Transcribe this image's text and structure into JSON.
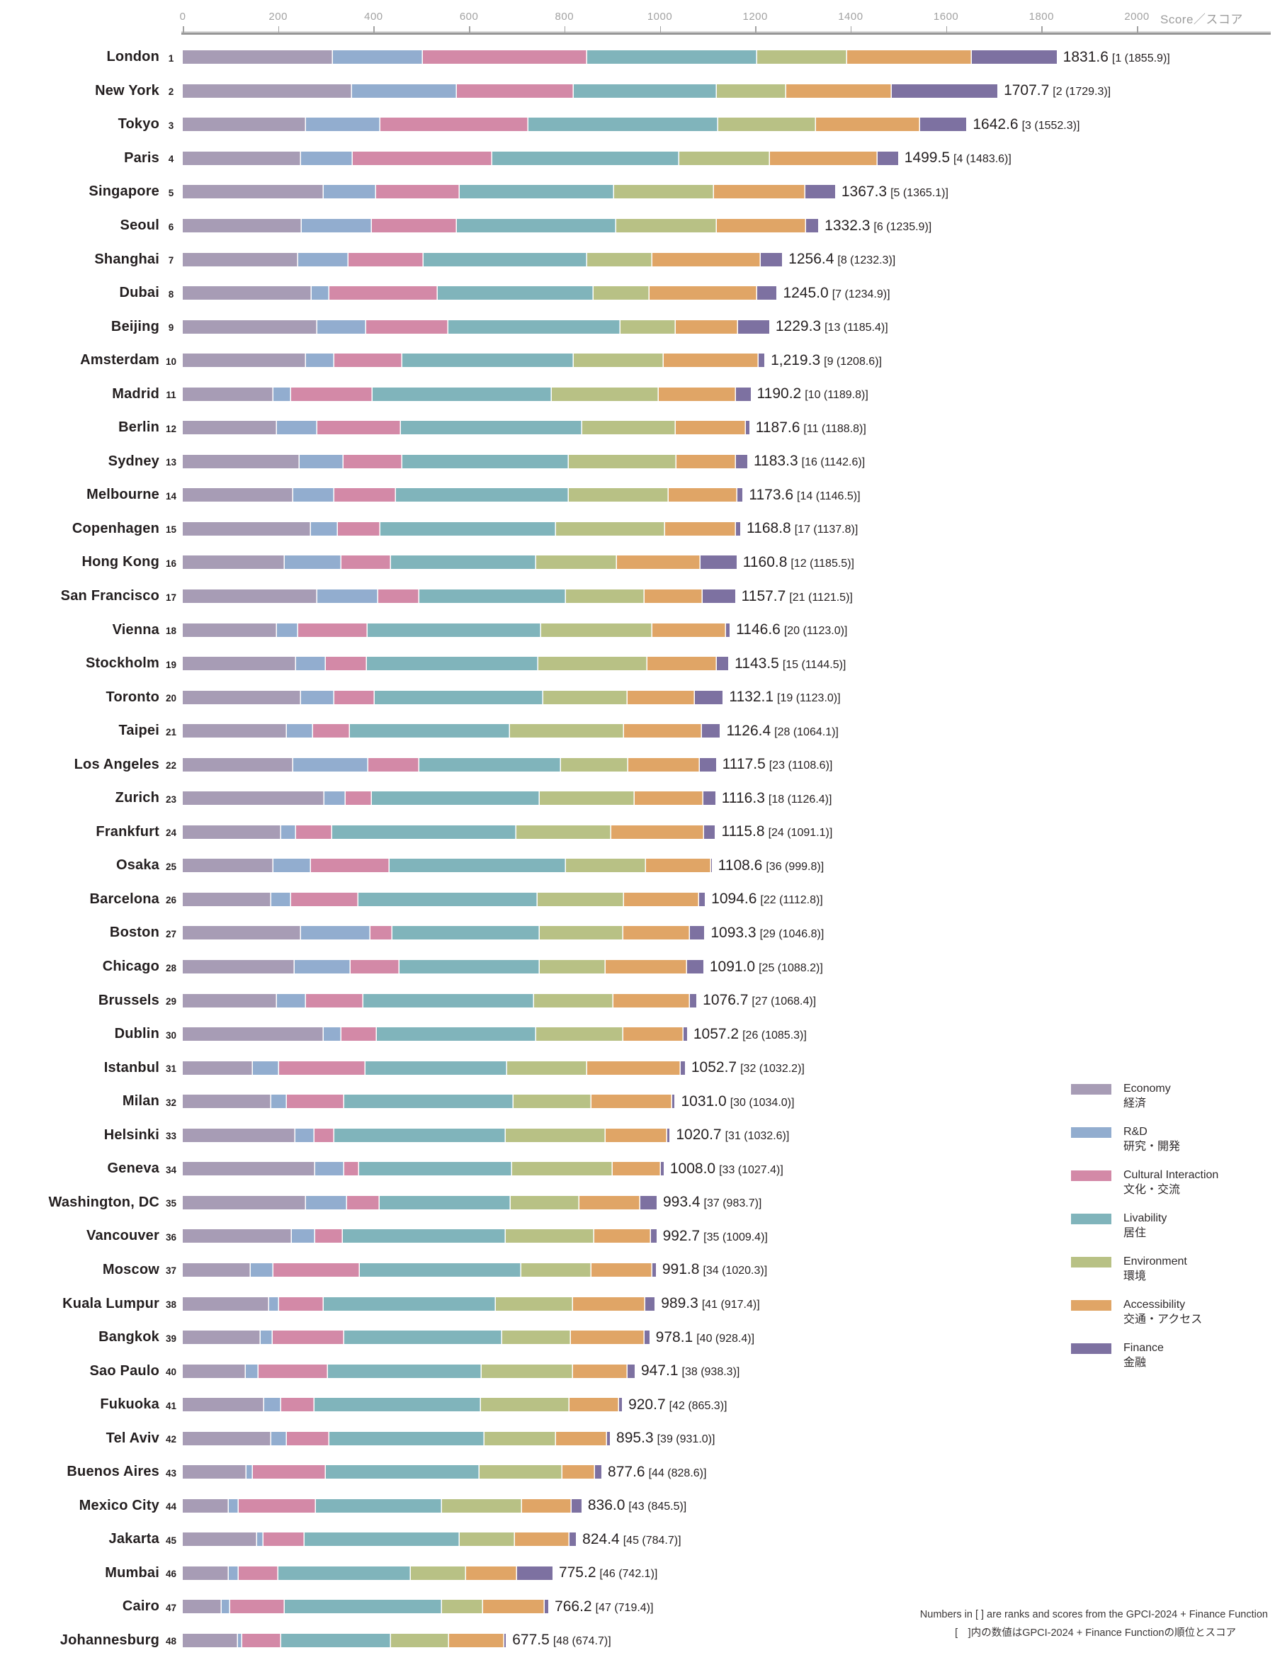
{
  "page": {
    "axis_unit_label": "Score／スコア"
  },
  "footnote": {
    "line1": "Numbers in [ ] are ranks and scores from the GPCI-2024 + Finance Function",
    "line2": "[　]内の数値はGPCI-2024 + Finance Functionの順位とスコア"
  },
  "chart_data": {
    "type": "bar",
    "variant": "horizontal-stacked",
    "title": "",
    "axis": {
      "min": 0,
      "max": 2000,
      "step": 200,
      "label": "Score／スコア",
      "grid": false
    },
    "legend_position": "right-middle",
    "legend": [
      {
        "key": "economy",
        "en": "Economy",
        "ja": "経済",
        "color": "#a79cb5"
      },
      {
        "key": "rd",
        "en": "R&D",
        "ja": "研究・開発",
        "color": "#92adcf"
      },
      {
        "key": "cultural",
        "en": "Cultural Interaction",
        "ja": "文化・交流",
        "color": "#d389a7"
      },
      {
        "key": "livability",
        "en": "Livability",
        "ja": "居住",
        "color": "#80b4bb"
      },
      {
        "key": "environment",
        "en": "Environment",
        "ja": "環境",
        "color": "#b8c185"
      },
      {
        "key": "accessibility",
        "en": "Accessibility",
        "ja": "交通・アクセス",
        "color": "#e0a566"
      },
      {
        "key": "finance",
        "en": "Finance",
        "ja": "金融",
        "color": "#7d71a1"
      }
    ],
    "cities": [
      {
        "name": "London",
        "rank": 1,
        "score_label": "1831.6",
        "note": "[1 (1855.9)]",
        "values": [
          315,
          188,
          345,
          356,
          188,
          262,
          177.6
        ]
      },
      {
        "name": "New York",
        "rank": 2,
        "score_label": "1707.7",
        "note": "[2 (1729.3)]",
        "values": [
          355,
          219,
          245,
          301,
          145,
          221,
          221.7
        ]
      },
      {
        "name": "Tokyo",
        "rank": 3,
        "score_label": "1642.6",
        "note": "[3 (1552.3)]",
        "values": [
          259,
          155,
          311,
          397,
          205,
          219,
          96.6
        ]
      },
      {
        "name": "Paris",
        "rank": 4,
        "score_label": "1499.5",
        "note": "[4 (1483.6)]",
        "values": [
          248,
          108,
          293,
          392,
          190,
          226,
          42.5
        ]
      },
      {
        "name": "Singapore",
        "rank": 5,
        "score_label": "1367.3",
        "note": "[5 (1365.1)]",
        "values": [
          296,
          109,
          176,
          323,
          209,
          192,
          62.3
        ]
      },
      {
        "name": "Seoul",
        "rank": 6,
        "score_label": "1332.3",
        "note": "[6 (1235.9)]",
        "values": [
          249,
          147,
          178,
          335,
          210,
          188,
          25.3
        ]
      },
      {
        "name": "Shanghai",
        "rank": 7,
        "score_label": "1256.4",
        "note": "[8 (1232.3)]",
        "values": [
          242,
          106,
          157,
          343,
          137,
          226,
          45.4
        ]
      },
      {
        "name": "Dubai",
        "rank": 8,
        "score_label": "1245.0",
        "note": "[7 (1234.9)]",
        "values": [
          270,
          37,
          228,
          326,
          117,
          226,
          41
        ]
      },
      {
        "name": "Beijing",
        "rank": 9,
        "score_label": "1229.3",
        "note": "[13 (1185.4)]",
        "values": [
          282,
          103,
          172,
          361,
          116,
          130,
          65.3
        ]
      },
      {
        "name": "Amsterdam",
        "rank": 10,
        "score_label": "1,219.3",
        "note": "[9 (1208.6)]",
        "values": [
          259,
          59,
          142,
          360,
          189,
          199,
          11.3
        ]
      },
      {
        "name": "Madrid",
        "rank": 11,
        "score_label": "1190.2",
        "note": "[10 (1189.8)]",
        "values": [
          190,
          37,
          171,
          376,
          224,
          162,
          30.2
        ]
      },
      {
        "name": "Berlin",
        "rank": 12,
        "score_label": "1187.6",
        "note": "[11 (1188.8)]",
        "values": [
          197,
          85,
          175,
          380,
          197,
          146,
          7.6
        ]
      },
      {
        "name": "Sydney",
        "rank": 13,
        "score_label": "1183.3",
        "note": "[16 (1142.6)]",
        "values": [
          245,
          92,
          123,
          349,
          226,
          125,
          23.3
        ]
      },
      {
        "name": "Melbourne",
        "rank": 14,
        "score_label": "1173.6",
        "note": "[14 (1146.5)]",
        "values": [
          232,
          86,
          129,
          362,
          210,
          144,
          10.6
        ]
      },
      {
        "name": "Copenhagen",
        "rank": 15,
        "score_label": "1168.8",
        "note": "[17 (1137.8)]",
        "values": [
          268,
          57,
          89,
          368,
          230,
          148,
          8.8
        ]
      },
      {
        "name": "Hong Kong",
        "rank": 16,
        "score_label": "1160.8",
        "note": "[12 (1185.5)]",
        "values": [
          214,
          118,
          105,
          304,
          169,
          175,
          75.8
        ]
      },
      {
        "name": "San Francisco",
        "rank": 17,
        "score_label": "1157.7",
        "note": "[21 (1121.5)]",
        "values": [
          282,
          128,
          86,
          308,
          164,
          122,
          67.7
        ]
      },
      {
        "name": "Vienna",
        "rank": 18,
        "score_label": "1146.6",
        "note": "[20 (1123.0)]",
        "values": [
          197,
          45,
          146,
          363,
          233,
          155,
          7.6
        ]
      },
      {
        "name": "Stockholm",
        "rank": 19,
        "score_label": "1143.5",
        "note": "[15 (1144.5)]",
        "values": [
          238,
          62,
          86,
          359,
          229,
          145,
          24.5
        ]
      },
      {
        "name": "Toronto",
        "rank": 20,
        "score_label": "1132.1",
        "note": "[19 (1123.0)]",
        "values": [
          248,
          69,
          86,
          353,
          177,
          141,
          58.1
        ]
      },
      {
        "name": "Taipei",
        "rank": 21,
        "score_label": "1126.4",
        "note": "[28 (1064.1)]",
        "values": [
          218,
          55,
          78,
          335,
          240,
          162,
          38.4
        ]
      },
      {
        "name": "Los Angeles",
        "rank": 22,
        "score_label": "1117.5",
        "note": "[23 (1108.6)]",
        "values": [
          232,
          157,
          107,
          297,
          141,
          150,
          33.5
        ]
      },
      {
        "name": "Zurich",
        "rank": 23,
        "score_label": "1116.3",
        "note": "[18 (1126.4)]",
        "values": [
          297,
          44,
          55,
          352,
          200,
          144,
          24.3
        ]
      },
      {
        "name": "Frankfurt",
        "rank": 24,
        "score_label": "1115.8",
        "note": "[24 (1091.1)]",
        "values": [
          207,
          31,
          75,
          387,
          199,
          194,
          22.8
        ]
      },
      {
        "name": "Osaka",
        "rank": 25,
        "score_label": "1108.6",
        "note": "[36 (999.8)]",
        "values": [
          190,
          78,
          165,
          371,
          167,
          136,
          1.6
        ]
      },
      {
        "name": "Barcelona",
        "rank": 26,
        "score_label": "1094.6",
        "note": "[22 (1112.8)]",
        "values": [
          186,
          41,
          141,
          376,
          181,
          158,
          11.6
        ]
      },
      {
        "name": "Boston",
        "rank": 27,
        "score_label": "1093.3",
        "note": "[29 (1046.8)]",
        "values": [
          248,
          145,
          47,
          309,
          174,
          140,
          30.3
        ]
      },
      {
        "name": "Chicago",
        "rank": 28,
        "score_label": "1091.0",
        "note": "[25 (1088.2)]",
        "values": [
          234,
          118,
          103,
          294,
          137,
          171,
          34
        ]
      },
      {
        "name": "Brussels",
        "rank": 29,
        "score_label": "1076.7",
        "note": "[27 (1068.4)]",
        "values": [
          197,
          62,
          119,
          358,
          167,
          160,
          13.7
        ]
      },
      {
        "name": "Dublin",
        "rank": 30,
        "score_label": "1057.2",
        "note": "[26 (1085.3)]",
        "values": [
          296,
          36,
          75,
          334,
          182,
          127,
          7.2
        ]
      },
      {
        "name": "Istanbul",
        "rank": 31,
        "score_label": "1052.7",
        "note": "[32 (1032.2)]",
        "values": [
          147,
          55,
          181,
          297,
          168,
          196,
          8.7
        ]
      },
      {
        "name": "Milan",
        "rank": 32,
        "score_label": "1031.0",
        "note": "[30 (1034.0)]",
        "values": [
          186,
          32,
          120,
          355,
          164,
          169,
          5
        ]
      },
      {
        "name": "Helsinki",
        "rank": 33,
        "score_label": "1020.7",
        "note": "[31 (1032.6)]",
        "values": [
          236,
          40,
          42,
          359,
          209,
          129,
          5.7
        ]
      },
      {
        "name": "Geneva",
        "rank": 34,
        "score_label": "1008.0",
        "note": "[33 (1027.4)]",
        "values": [
          277,
          62,
          30,
          322,
          210,
          101,
          6
        ]
      },
      {
        "name": "Washington, DC",
        "rank": 35,
        "score_label": "993.4",
        "note": "[37 (983.7)]",
        "values": [
          259,
          86,
          68,
          274,
          144,
          129,
          33.4
        ]
      },
      {
        "name": "Vancouver",
        "rank": 36,
        "score_label": "992.7",
        "note": "[35 (1009.4)]",
        "values": [
          228,
          49,
          58,
          342,
          185,
          120,
          10.7
        ]
      },
      {
        "name": "Moscow",
        "rank": 37,
        "score_label": "991.8",
        "note": "[34 (1020.3)]",
        "values": [
          142,
          48,
          182,
          338,
          147,
          127,
          7.8
        ]
      },
      {
        "name": "Kuala Lumpur",
        "rank": 38,
        "score_label": "989.3",
        "note": "[41 (917.4)]",
        "values": [
          181,
          21,
          94,
          360,
          162,
          151,
          20.3
        ]
      },
      {
        "name": "Bangkok",
        "rank": 39,
        "score_label": "978.1",
        "note": "[40 (928.4)]",
        "values": [
          163,
          25,
          151,
          331,
          144,
          154,
          10.1
        ]
      },
      {
        "name": "Sao Paulo",
        "rank": 40,
        "score_label": "947.1",
        "note": "[38 (938.3)]",
        "values": [
          132,
          27,
          145,
          322,
          192,
          115,
          14.1
        ]
      },
      {
        "name": "Fukuoka",
        "rank": 41,
        "score_label": "920.7",
        "note": "[42 (865.3)]",
        "values": [
          170,
          37,
          69,
          349,
          185,
          104,
          6.7
        ]
      },
      {
        "name": "Tel Aviv",
        "rank": 42,
        "score_label": "895.3",
        "note": "[39 (931.0)]",
        "values": [
          186,
          32,
          89,
          326,
          149,
          107,
          6.3
        ]
      },
      {
        "name": "Buenos Aires",
        "rank": 43,
        "score_label": "877.6",
        "note": "[44 (828.6)]",
        "values": [
          133,
          14,
          153,
          322,
          174,
          68,
          13.6
        ]
      },
      {
        "name": "Mexico City",
        "rank": 44,
        "score_label": "836.0",
        "note": "[43 (845.5)]",
        "values": [
          97,
          21,
          162,
          263,
          168,
          105,
          20
        ]
      },
      {
        "name": "Jakarta",
        "rank": 45,
        "score_label": "824.4",
        "note": "[45 (784.7)]",
        "values": [
          156,
          14,
          85,
          326,
          116,
          114,
          13.4
        ]
      },
      {
        "name": "Mumbai",
        "rank": 46,
        "score_label": "775.2",
        "note": "[46 (742.1)]",
        "values": [
          97,
          21,
          82,
          278,
          116,
          107,
          74.2
        ]
      },
      {
        "name": "Cairo",
        "rank": 47,
        "score_label": "766.2",
        "note": "[47 (719.4)]",
        "values": [
          81,
          18,
          115,
          330,
          85,
          130,
          7.2
        ]
      },
      {
        "name": "Johannesburg",
        "rank": 48,
        "score_label": "677.5",
        "note": "[48 (674.7)]",
        "values": [
          115,
          10,
          82,
          230,
          121,
          116,
          3.5
        ]
      }
    ]
  }
}
